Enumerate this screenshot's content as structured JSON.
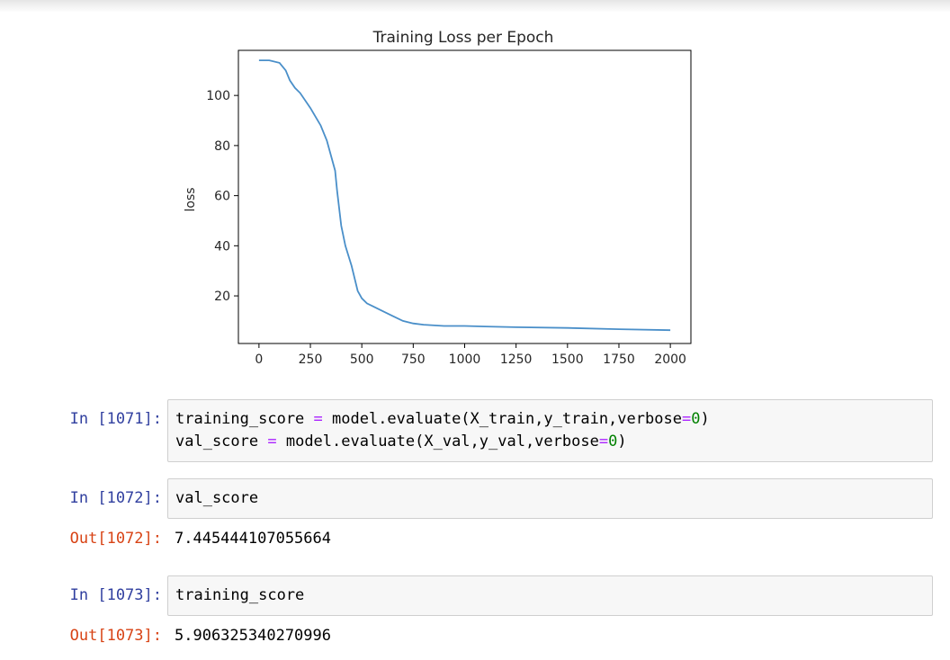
{
  "chart_data": {
    "type": "line",
    "title": "Training Loss per Epoch",
    "xlabel": "",
    "ylabel": "loss",
    "xlim": [
      -100,
      2100
    ],
    "ylim": [
      1,
      118
    ],
    "xticks": [
      "0",
      "250",
      "500",
      "750",
      "1000",
      "1250",
      "1500",
      "1750",
      "2000"
    ],
    "xtick_values": [
      0,
      250,
      500,
      750,
      1000,
      1250,
      1500,
      1750,
      2000
    ],
    "yticks": [
      "20",
      "40",
      "60",
      "80",
      "100"
    ],
    "ytick_values": [
      20,
      40,
      60,
      80,
      100
    ],
    "grid": false,
    "line_color": "#4a8fc9",
    "series": [
      {
        "x": [
          0,
          50,
          100,
          130,
          150,
          175,
          200,
          250,
          300,
          330,
          350,
          370,
          380,
          400,
          420,
          450,
          480,
          500,
          525,
          550,
          600,
          650,
          700,
          750,
          800,
          900,
          1000,
          1100,
          1250,
          1500,
          1750,
          2000
        ],
        "y": [
          114,
          114,
          113,
          110,
          106,
          103,
          101,
          95,
          88,
          82,
          76,
          70,
          62,
          48,
          40,
          32,
          22,
          19,
          17,
          16,
          14,
          12,
          10,
          9,
          8.5,
          8,
          8,
          7.8,
          7.5,
          7.2,
          6.7,
          6.3
        ]
      }
    ]
  },
  "cells": [
    {
      "prompt": "In [1071]:",
      "code_lines": [
        [
          {
            "t": "training_score ",
            "c": ""
          },
          {
            "t": "=",
            "c": "op"
          },
          {
            "t": " model.evaluate(X_train,y_train,verbose",
            "c": ""
          },
          {
            "t": "=",
            "c": "op"
          },
          {
            "t": "0",
            "c": "num"
          },
          {
            "t": ")",
            "c": ""
          }
        ],
        [
          {
            "t": "val_score ",
            "c": ""
          },
          {
            "t": "=",
            "c": "op"
          },
          {
            "t": " model.evaluate(X_val,y_val,verbose",
            "c": ""
          },
          {
            "t": "=",
            "c": "op"
          },
          {
            "t": "0",
            "c": "num"
          },
          {
            "t": ")",
            "c": ""
          }
        ]
      ]
    },
    {
      "prompt": "In [1072]:",
      "code": "val_score",
      "out_prompt": "Out[1072]:",
      "output": "7.445444107055664"
    },
    {
      "prompt": "In [1073]:",
      "code": "training_score",
      "out_prompt": "Out[1073]:",
      "output": "5.906325340270996"
    }
  ]
}
